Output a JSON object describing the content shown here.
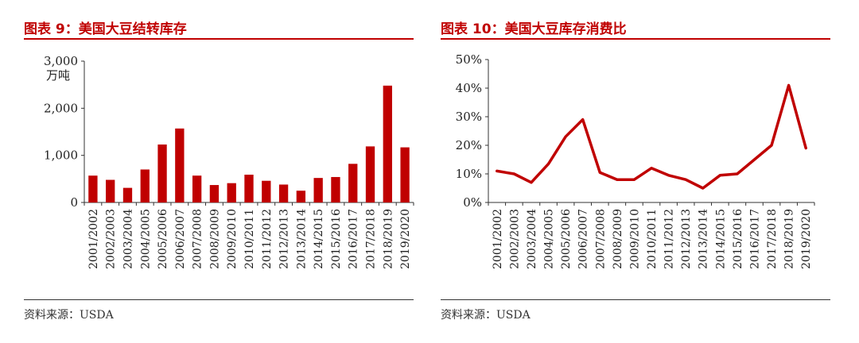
{
  "charts": {
    "left": {
      "title": "图表 9：美国大豆结转库存",
      "source": "资料来源：USDA"
    },
    "right": {
      "title": "图表 10：美国大豆库存消费比",
      "source": "资料来源：USDA"
    }
  },
  "colors": {
    "accent": "#c00000"
  },
  "chart_data": [
    {
      "type": "bar",
      "title": "图表 9：美国大豆结转库存",
      "ylabel": "万吨",
      "ylim": [
        0,
        3000
      ],
      "yticks": [
        0,
        1000,
        2000,
        3000
      ],
      "yticklabels": [
        "0",
        "1,000",
        "2,000",
        "3,000"
      ],
      "grid": false,
      "categories": [
        "2001/2002",
        "2002/2003",
        "2003/2004",
        "2004/2005",
        "2005/2006",
        "2006/2007",
        "2007/2008",
        "2008/2009",
        "2009/2010",
        "2010/2011",
        "2011/2012",
        "2012/2013",
        "2013/2014",
        "2014/2015",
        "2015/2016",
        "2016/2017",
        "2017/2018",
        "2018/2019",
        "2019/2020"
      ],
      "values": [
        570,
        480,
        310,
        700,
        1230,
        1570,
        570,
        370,
        410,
        590,
        460,
        380,
        250,
        520,
        540,
        820,
        1190,
        2480,
        1170
      ],
      "color": "#c00000"
    },
    {
      "type": "line",
      "title": "图表 10：美国大豆库存消费比",
      "ylim": [
        0,
        50
      ],
      "yticks": [
        0,
        10,
        20,
        30,
        40,
        50
      ],
      "yticklabels": [
        "0%",
        "10%",
        "20%",
        "30%",
        "40%",
        "50%"
      ],
      "grid": false,
      "categories": [
        "2001/2002",
        "2002/2003",
        "2003/2004",
        "2004/2005",
        "2005/2006",
        "2006/2007",
        "2007/2008",
        "2008/2009",
        "2009/2010",
        "2010/2011",
        "2011/2012",
        "2012/2013",
        "2013/2014",
        "2014/2015",
        "2015/2016",
        "2016/2017",
        "2017/2018",
        "2018/2019",
        "2019/2020"
      ],
      "values": [
        11,
        10,
        7,
        13.5,
        23,
        29,
        10.5,
        8,
        8,
        12,
        9.5,
        8,
        5,
        9.5,
        10,
        15,
        20,
        41,
        19
      ],
      "color": "#c00000"
    }
  ]
}
